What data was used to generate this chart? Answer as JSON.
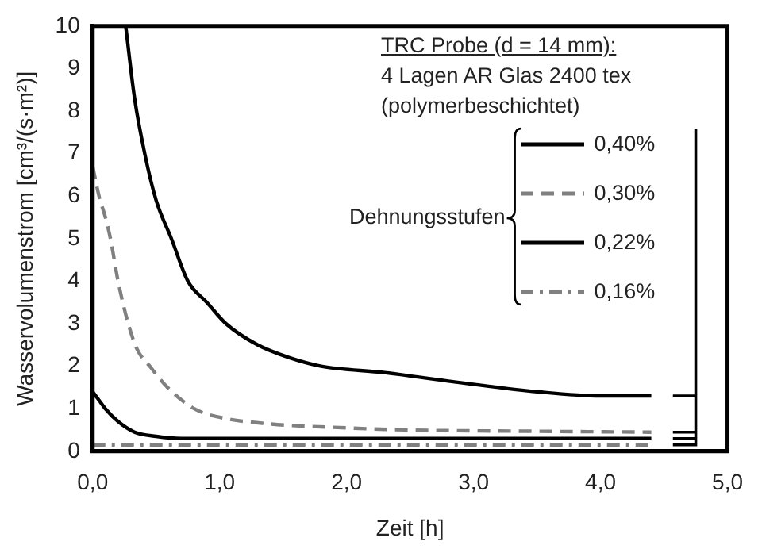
{
  "chart_data": {
    "type": "line",
    "xlabel": "Zeit [h]",
    "ylabel": "Wasservolumenstrom [cm³/(s·m²)]",
    "xlim": [
      0,
      5
    ],
    "xticks": [
      {
        "value": 0,
        "label": "0,0"
      },
      {
        "value": 1,
        "label": "1,0"
      },
      {
        "value": 2,
        "label": "2,0"
      },
      {
        "value": 3,
        "label": "3,0"
      },
      {
        "value": 4,
        "label": "4,0"
      },
      {
        "value": 5,
        "label": "5,0"
      }
    ],
    "ylim": [
      0,
      10
    ],
    "yticks": [
      0,
      1,
      2,
      3,
      4,
      5,
      6,
      7,
      8,
      9,
      10
    ],
    "grid": false,
    "legend": "top right",
    "legend_title": "Dehnungsstufen",
    "marker": "none",
    "annotations": [
      "TRC Probe (d = 14 mm):",
      "4 Lagen AR Glas 2400 tex",
      "(polymerbeschichtet)"
    ],
    "series": [
      {
        "name": "0,40%",
        "color": "#000000",
        "line_style": "solid",
        "x": [
          0.26,
          0.33,
          0.41,
          0.5,
          0.62,
          0.75,
          0.9,
          1.05,
          1.3,
          1.55,
          1.8,
          2.3,
          2.8,
          3.5,
          4.0,
          4.4
        ],
        "values": [
          10,
          8.3,
          7,
          5.9,
          5,
          4,
          3.5,
          3,
          2.5,
          2.2,
          2,
          1.85,
          1.65,
          1.4,
          1.3,
          1.3
        ]
      },
      {
        "name": "0,30%",
        "color": "#808080",
        "line_style": "dashed",
        "x": [
          0,
          0.05,
          0.1,
          0.14,
          0.2,
          0.28,
          0.35,
          0.45,
          0.59,
          0.8,
          1.0,
          1.37,
          2.0,
          2.5,
          3.5,
          4.4
        ],
        "values": [
          6.7,
          6.0,
          5.5,
          5,
          4,
          3,
          2.4,
          2,
          1.5,
          1,
          0.8,
          0.65,
          0.55,
          0.5,
          0.47,
          0.45
        ]
      },
      {
        "name": "0,22%",
        "color": "#000000",
        "line_style": "solid",
        "x": [
          0,
          0.05,
          0.1,
          0.2,
          0.33,
          0.5,
          0.7,
          1.0,
          2.0,
          3.0,
          4.4
        ],
        "values": [
          1.4,
          1.2,
          1.0,
          0.7,
          0.45,
          0.35,
          0.3,
          0.3,
          0.3,
          0.3,
          0.3
        ]
      },
      {
        "name": "0,16%",
        "color": "#808080",
        "line_style": "dashdot",
        "x": [
          0,
          1.0,
          2.0,
          3.0,
          4.4
        ],
        "values": [
          0.15,
          0.15,
          0.15,
          0.15,
          0.15
        ]
      }
    ]
  }
}
